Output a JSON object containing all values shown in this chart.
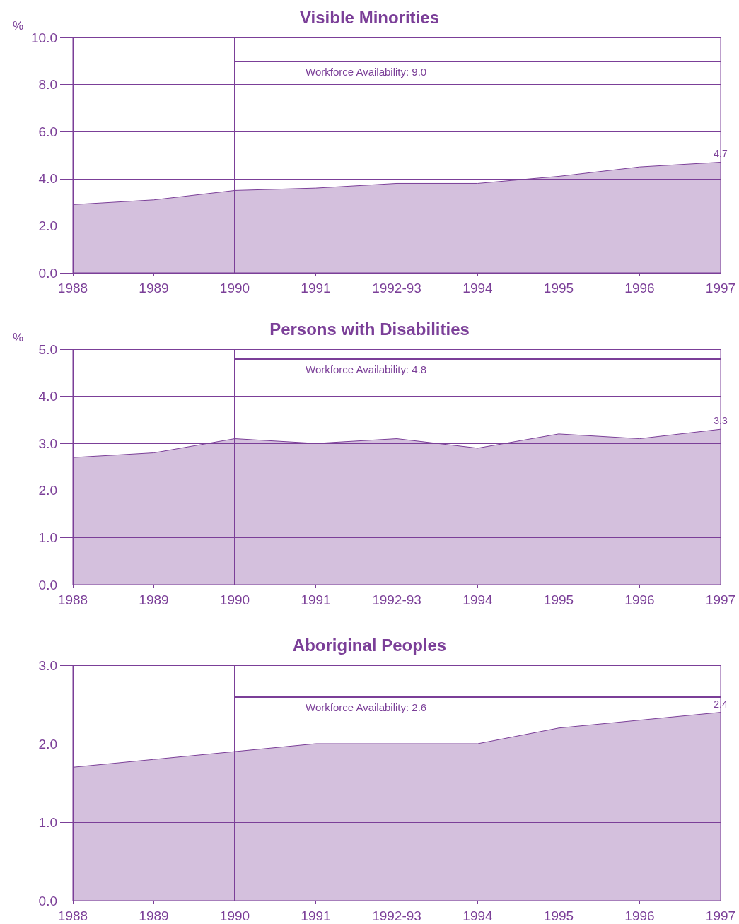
{
  "chart_data": [
    {
      "type": "area",
      "title": "Visible Minorities",
      "ylabel": "%",
      "categories": [
        "1988",
        "1989",
        "1990",
        "1991",
        "1992-93",
        "1994",
        "1995",
        "1996",
        "1997"
      ],
      "series": [
        {
          "color": "#7b3f98",
          "values": [
            2.9,
            3.1,
            3.5,
            3.6,
            3.8,
            3.8,
            4.1,
            4.5,
            4.7
          ],
          "value_labels": [
            null,
            null,
            null,
            null,
            null,
            null,
            null,
            null,
            "4.7"
          ]
        }
      ],
      "ylim": [
        0,
        10
      ],
      "yticks": [
        {
          "value": 0,
          "label": "0.0"
        },
        {
          "value": 2,
          "label": "2.0"
        },
        {
          "value": 4,
          "label": "4.0"
        },
        {
          "value": 6,
          "label": "6.0"
        },
        {
          "value": 8,
          "label": "8.0"
        },
        {
          "value": 10,
          "label": "10.0"
        }
      ],
      "grid": "y",
      "ref_lines": [
        {
          "axis": "x",
          "value": "1990",
          "label": null,
          "color": "#7b3f98"
        },
        {
          "axis": "y",
          "value": 9.0,
          "label": "Workforce Availability: 9.0",
          "color": "#7b3f98"
        }
      ]
    },
    {
      "type": "area",
      "title": "Persons with Disabilities",
      "ylabel": "%",
      "categories": [
        "1988",
        "1989",
        "1990",
        "1991",
        "1992-93",
        "1994",
        "1995",
        "1996",
        "1997"
      ],
      "series": [
        {
          "color": "#7b3f98",
          "values": [
            2.7,
            2.8,
            3.1,
            3.0,
            3.1,
            2.9,
            3.2,
            3.1,
            3.3
          ],
          "value_labels": [
            null,
            null,
            null,
            null,
            null,
            null,
            null,
            null,
            "3.3"
          ]
        }
      ],
      "ylim": [
        0,
        5
      ],
      "yticks": [
        {
          "value": 0,
          "label": "0.0"
        },
        {
          "value": 1,
          "label": "1.0"
        },
        {
          "value": 2,
          "label": "2.0"
        },
        {
          "value": 3,
          "label": "3.0"
        },
        {
          "value": 4,
          "label": "4.0"
        },
        {
          "value": 5,
          "label": "5.0"
        }
      ],
      "grid": "y",
      "ref_lines": [
        {
          "axis": "x",
          "value": "1990",
          "label": null,
          "color": "#7b3f98"
        },
        {
          "axis": "y",
          "value": 4.8,
          "label": "Workforce Availability: 4.8",
          "color": "#7b3f98"
        }
      ]
    },
    {
      "type": "area",
      "title": "Aboriginal Peoples",
      "categories": [
        "1988",
        "1989",
        "1990",
        "1991",
        "1992-93",
        "1994",
        "1995",
        "1996",
        "1997"
      ],
      "series": [
        {
          "color": "#7b3f98",
          "values": [
            1.7,
            1.8,
            1.9,
            2.0,
            2.0,
            2.0,
            2.2,
            2.3,
            2.4
          ],
          "value_labels": [
            null,
            null,
            null,
            null,
            null,
            null,
            null,
            null,
            "2.4"
          ]
        }
      ],
      "ylim": [
        0,
        3
      ],
      "yticks": [
        {
          "value": 0,
          "label": "0.0"
        },
        {
          "value": 1,
          "label": "1.0"
        },
        {
          "value": 2,
          "label": "2.0"
        },
        {
          "value": 3,
          "label": "3.0"
        }
      ],
      "grid": "y",
      "ref_lines": [
        {
          "axis": "x",
          "value": "1990",
          "label": null,
          "color": "#7b3f98"
        },
        {
          "axis": "y",
          "value": 2.6,
          "label": "Workforce Availability: 2.6",
          "color": "#7b3f98"
        }
      ]
    }
  ]
}
